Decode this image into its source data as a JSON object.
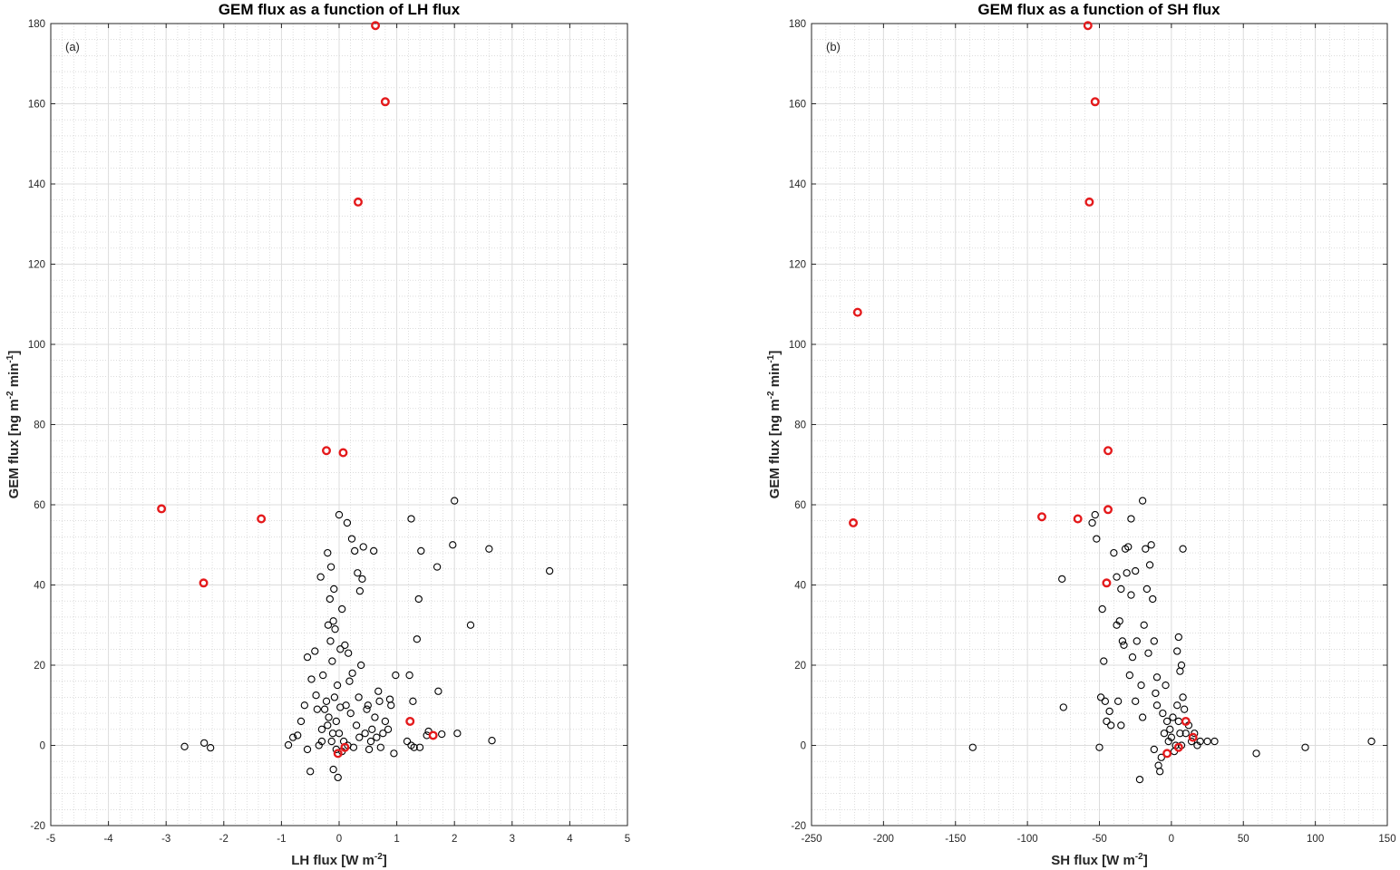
{
  "chart_data": [
    {
      "type": "scatter",
      "title": "GEM flux as a function of LH flux",
      "panel_label": "(a)",
      "xlabel": "LH  flux  [W m",
      "xlabel_sup": "-2",
      "xlabel_end": "]",
      "ylabel": "GEM flux [ng m",
      "ylabel_sup1": "-2",
      "ylabel_mid": " min",
      "ylabel_sup2": "-1",
      "ylabel_end": "]",
      "xlim": [
        -5,
        5
      ],
      "ylim": [
        -20,
        180
      ],
      "xticks": [
        -5,
        -4,
        -3,
        -2,
        -1,
        0,
        1,
        2,
        3,
        4,
        5
      ],
      "yticks": [
        -20,
        0,
        20,
        40,
        60,
        80,
        100,
        120,
        140,
        160,
        180
      ],
      "grid": "major and minor",
      "series": [
        {
          "marker_color": "#000000",
          "points": [
            [
              -2.68,
              -0.3
            ],
            [
              -2.34,
              0.6
            ],
            [
              -2.23,
              -0.6
            ],
            [
              -0.88,
              0.1
            ],
            [
              -0.8,
              2
            ],
            [
              -0.72,
              2.5
            ],
            [
              -0.66,
              6
            ],
            [
              -0.6,
              10
            ],
            [
              -0.55,
              22
            ],
            [
              -0.55,
              -1
            ],
            [
              -0.5,
              -6.5
            ],
            [
              -0.48,
              16.5
            ],
            [
              -0.42,
              23.5
            ],
            [
              -0.4,
              12.5
            ],
            [
              -0.38,
              9
            ],
            [
              -0.35,
              0
            ],
            [
              -0.32,
              42
            ],
            [
              -0.3,
              4
            ],
            [
              -0.28,
              17.5
            ],
            [
              -0.25,
              9
            ],
            [
              -0.22,
              11
            ],
            [
              -0.2,
              48
            ],
            [
              -0.19,
              30
            ],
            [
              -0.18,
              7
            ],
            [
              -0.16,
              36.5
            ],
            [
              -0.15,
              26
            ],
            [
              -0.14,
              44.5
            ],
            [
              -0.13,
              1
            ],
            [
              -0.12,
              21
            ],
            [
              -0.11,
              3
            ],
            [
              -0.1,
              31
            ],
            [
              -0.1,
              -6
            ],
            [
              -0.09,
              39
            ],
            [
              -0.08,
              12
            ],
            [
              -0.07,
              29
            ],
            [
              -0.05,
              6
            ],
            [
              -0.05,
              -1
            ],
            [
              -0.03,
              15
            ],
            [
              -0.02,
              -8
            ],
            [
              0,
              57.5
            ],
            [
              0,
              3
            ],
            [
              0.02,
              24
            ],
            [
              0.02,
              9.5
            ],
            [
              0.05,
              34
            ],
            [
              0.05,
              -1.5
            ],
            [
              0.08,
              1
            ],
            [
              0.1,
              25
            ],
            [
              0.12,
              10
            ],
            [
              0.14,
              55.5
            ],
            [
              0.16,
              23
            ],
            [
              0.18,
              16
            ],
            [
              0.2,
              8
            ],
            [
              0.22,
              51.5
            ],
            [
              0.23,
              18
            ],
            [
              0.25,
              -0.5
            ],
            [
              0.27,
              48.5
            ],
            [
              0.3,
              5
            ],
            [
              0.32,
              43
            ],
            [
              0.34,
              12
            ],
            [
              0.36,
              38.5
            ],
            [
              0.38,
              20
            ],
            [
              0.4,
              41.5
            ],
            [
              0.42,
              49.5
            ],
            [
              0.45,
              3
            ],
            [
              0.48,
              9
            ],
            [
              0.5,
              10
            ],
            [
              0.52,
              -1
            ],
            [
              0.55,
              1
            ],
            [
              0.57,
              4
            ],
            [
              0.6,
              48.5
            ],
            [
              0.62,
              7
            ],
            [
              0.65,
              2
            ],
            [
              0.68,
              13.5
            ],
            [
              0.7,
              11
            ],
            [
              0.72,
              -0.5
            ],
            [
              0.76,
              3
            ],
            [
              0.8,
              6
            ],
            [
              0.85,
              4
            ],
            [
              0.88,
              11.5
            ],
            [
              0.9,
              10
            ],
            [
              0.95,
              -2
            ],
            [
              0.98,
              17.5
            ],
            [
              1.22,
              17.5
            ],
            [
              1.25,
              56.5
            ],
            [
              1.28,
              11
            ],
            [
              1.3,
              -0.5
            ],
            [
              1.35,
              26.5
            ],
            [
              1.38,
              36.5
            ],
            [
              1.42,
              48.5
            ],
            [
              1.4,
              -0.5
            ],
            [
              1.52,
              2.5
            ],
            [
              1.55,
              3.5
            ],
            [
              1.7,
              44.5
            ],
            [
              1.72,
              13.5
            ],
            [
              1.78,
              2.8
            ],
            [
              1.97,
              50
            ],
            [
              2,
              61
            ],
            [
              2.05,
              3
            ],
            [
              2.28,
              30
            ],
            [
              2.6,
              49
            ],
            [
              2.65,
              1.2
            ],
            [
              3.65,
              43.5
            ],
            [
              1.18,
              1
            ],
            [
              1.25,
              0
            ],
            [
              0.15,
              0
            ],
            [
              0.35,
              2
            ],
            [
              -0.2,
              5
            ],
            [
              -0.3,
              1
            ]
          ]
        },
        {
          "marker_color": "#e41a1c",
          "points": [
            [
              0.63,
              179.5
            ],
            [
              0.8,
              160.5
            ],
            [
              0.33,
              135.5
            ],
            [
              -0.22,
              73.5
            ],
            [
              0.07,
              73
            ],
            [
              -3.08,
              59
            ],
            [
              -1.35,
              56.5
            ],
            [
              -2.35,
              40.5
            ],
            [
              1.23,
              6
            ],
            [
              1.63,
              2.5
            ],
            [
              0.1,
              -0.5
            ],
            [
              -0.02,
              -2
            ]
          ]
        }
      ]
    },
    {
      "type": "scatter",
      "title": "GEM flux as a function of SH flux",
      "panel_label": "(b)",
      "xlabel": "SH  flux  [W m",
      "xlabel_sup": "-2",
      "xlabel_end": "]",
      "ylabel": "GEM flux [ng m",
      "ylabel_sup1": "-2",
      "ylabel_mid": " min",
      "ylabel_sup2": "-1",
      "ylabel_end": "]",
      "xlim": [
        -250,
        150
      ],
      "ylim": [
        -20,
        180
      ],
      "xticks": [
        -250,
        -200,
        -150,
        -100,
        -50,
        0,
        50,
        100,
        150
      ],
      "yticks": [
        -20,
        0,
        20,
        40,
        60,
        80,
        100,
        120,
        140,
        160,
        180
      ],
      "grid": "major and minor",
      "series": [
        {
          "marker_color": "#000000",
          "points": [
            [
              -138,
              -0.5
            ],
            [
              -76,
              41.5
            ],
            [
              -75,
              9.5
            ],
            [
              -55,
              55.5
            ],
            [
              -53,
              57.5
            ],
            [
              -52,
              51.5
            ],
            [
              -50,
              -0.5
            ],
            [
              -49,
              12
            ],
            [
              -48,
              34
            ],
            [
              -47,
              21
            ],
            [
              -46,
              11
            ],
            [
              -45,
              6
            ],
            [
              -43,
              8.5
            ],
            [
              -42,
              5
            ],
            [
              -40,
              48
            ],
            [
              -38,
              42
            ],
            [
              -38,
              30
            ],
            [
              -37,
              11
            ],
            [
              -36,
              31
            ],
            [
              -35,
              39
            ],
            [
              -34,
              26
            ],
            [
              -33,
              25
            ],
            [
              -32,
              49
            ],
            [
              -31,
              43
            ],
            [
              -30,
              49.5
            ],
            [
              -29,
              17.5
            ],
            [
              -28,
              37.5
            ],
            [
              -28,
              56.5
            ],
            [
              -27,
              22
            ],
            [
              -25,
              43.5
            ],
            [
              -24,
              26
            ],
            [
              -22,
              -8.5
            ],
            [
              -21,
              15
            ],
            [
              -20,
              61
            ],
            [
              -19,
              30
            ],
            [
              -18,
              49
            ],
            [
              -17,
              39
            ],
            [
              -16,
              23
            ],
            [
              -15,
              45
            ],
            [
              -14,
              50
            ],
            [
              -13,
              36.5
            ],
            [
              -12,
              26
            ],
            [
              -12,
              -1
            ],
            [
              -11,
              13
            ],
            [
              -10,
              17
            ],
            [
              -9,
              -5
            ],
            [
              -8,
              -6.5
            ],
            [
              -7,
              -3
            ],
            [
              -6,
              8
            ],
            [
              -5,
              3
            ],
            [
              -4,
              15
            ],
            [
              -3,
              6
            ],
            [
              -2,
              1
            ],
            [
              -1,
              4
            ],
            [
              0,
              2
            ],
            [
              1,
              7
            ],
            [
              2,
              -1.5
            ],
            [
              3,
              0
            ],
            [
              4,
              10
            ],
            [
              5,
              6
            ],
            [
              6,
              3
            ],
            [
              7,
              0
            ],
            [
              8,
              12
            ],
            [
              9,
              9
            ],
            [
              10,
              3
            ],
            [
              12,
              5
            ],
            [
              14,
              1
            ],
            [
              16,
              3
            ],
            [
              18,
              0
            ],
            [
              20,
              1
            ],
            [
              25,
              1
            ],
            [
              30,
              1
            ],
            [
              6,
              18.5
            ],
            [
              7,
              20
            ],
            [
              8,
              49
            ],
            [
              5,
              27
            ],
            [
              4,
              23.5
            ],
            [
              59,
              -2
            ],
            [
              93,
              -0.5
            ],
            [
              139,
              1
            ],
            [
              -25,
              11
            ],
            [
              -35,
              5
            ],
            [
              -20,
              7
            ],
            [
              -10,
              10
            ]
          ]
        },
        {
          "marker_color": "#e41a1c",
          "points": [
            [
              -58,
              179.5
            ],
            [
              -53,
              160.5
            ],
            [
              -57,
              135.5
            ],
            [
              -218,
              108
            ],
            [
              -44,
              73.5
            ],
            [
              -221,
              55.5
            ],
            [
              -90,
              57
            ],
            [
              -65,
              56.5
            ],
            [
              -44,
              58.8
            ],
            [
              -45,
              40.5
            ],
            [
              10,
              6
            ],
            [
              15,
              2
            ],
            [
              5,
              -0.5
            ],
            [
              -3,
              -2
            ]
          ]
        }
      ]
    }
  ]
}
